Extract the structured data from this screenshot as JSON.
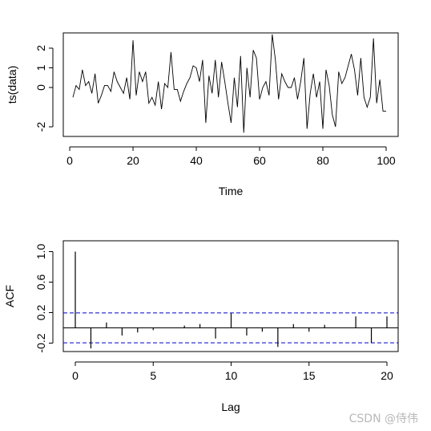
{
  "watermark": "CSDN @侍伟",
  "chart_data": [
    {
      "type": "line",
      "xlabel": "Time",
      "ylabel": "ts(data)",
      "xlim": [
        1,
        100
      ],
      "ylim": [
        -2.4,
        2.8
      ],
      "x_ticks": [
        0,
        20,
        40,
        60,
        80,
        100
      ],
      "x_tick_labels": [
        "0",
        "20",
        "40",
        "60",
        "80",
        "100"
      ],
      "y_ticks": [
        -2,
        0,
        1,
        2
      ],
      "y_tick_labels": [
        "-2",
        "0",
        "1",
        "2"
      ],
      "grid": false,
      "legend": "none",
      "series": [
        {
          "values": [
            -0.5,
            0.1,
            -0.1,
            0.9,
            0.1,
            0.3,
            -0.3,
            0.7,
            -0.8,
            -0.4,
            0.1,
            0.1,
            -0.2,
            0.8,
            0.3,
            0.0,
            -0.3,
            0.5,
            -0.6,
            2.4,
            -0.4,
            0.8,
            0.3,
            0.8,
            -0.8,
            -0.5,
            -0.9,
            0.3,
            -1.1,
            0.2,
            0.0,
            1.8,
            -0.1,
            -0.1,
            -0.7,
            -0.2,
            0.2,
            0.5,
            1.1,
            1.0,
            0.3,
            1.4,
            -1.8,
            0.6,
            -0.3,
            1.4,
            -0.5,
            1.3,
            0.3,
            -0.8,
            -1.8,
            0.5,
            -1.0,
            1.6,
            -2.3,
            1.0,
            -0.5,
            1.9,
            1.5,
            -0.6,
            0.0,
            0.3,
            -0.4,
            2.7,
            1.4,
            -0.6,
            0.7,
            0.3,
            0.0,
            0.0,
            0.5,
            -0.6,
            0.3,
            1.5,
            -2.1,
            -0.3,
            0.7,
            -0.5,
            0.3,
            -2.1,
            0.9,
            0.1,
            -1.4,
            -2.0,
            0.8,
            0.2,
            0.5,
            1.1,
            1.7,
            0.9,
            -0.4,
            1.5,
            -0.5,
            -1.0,
            -0.5,
            2.5,
            -0.8,
            0.4,
            -1.2,
            -1.2
          ]
        }
      ]
    },
    {
      "type": "bar",
      "xlabel": "Lag",
      "ylabel": "ACF",
      "xlim": [
        0,
        20
      ],
      "ylim": [
        -0.3,
        1.0
      ],
      "x_ticks": [
        0,
        5,
        10,
        15,
        20
      ],
      "x_tick_labels": [
        "0",
        "5",
        "10",
        "15",
        "20"
      ],
      "y_ticks": [
        -0.2,
        0.2,
        0.6,
        1.0
      ],
      "y_tick_labels": [
        "-0.2",
        "0.2",
        "0.6",
        "1.0"
      ],
      "grid": false,
      "legend": "none",
      "confidence_bound": 0.196,
      "bound_color": "#0000cc",
      "lags": [
        0,
        1,
        2,
        3,
        4,
        5,
        6,
        7,
        8,
        9,
        10,
        11,
        12,
        13,
        14,
        15,
        16,
        17,
        18,
        19,
        20
      ],
      "values": [
        1.0,
        -0.27,
        0.07,
        -0.1,
        -0.06,
        -0.03,
        0.0,
        0.03,
        0.05,
        -0.14,
        0.19,
        -0.1,
        -0.05,
        -0.25,
        0.05,
        -0.05,
        0.04,
        0.0,
        0.15,
        -0.2,
        0.15
      ]
    }
  ]
}
